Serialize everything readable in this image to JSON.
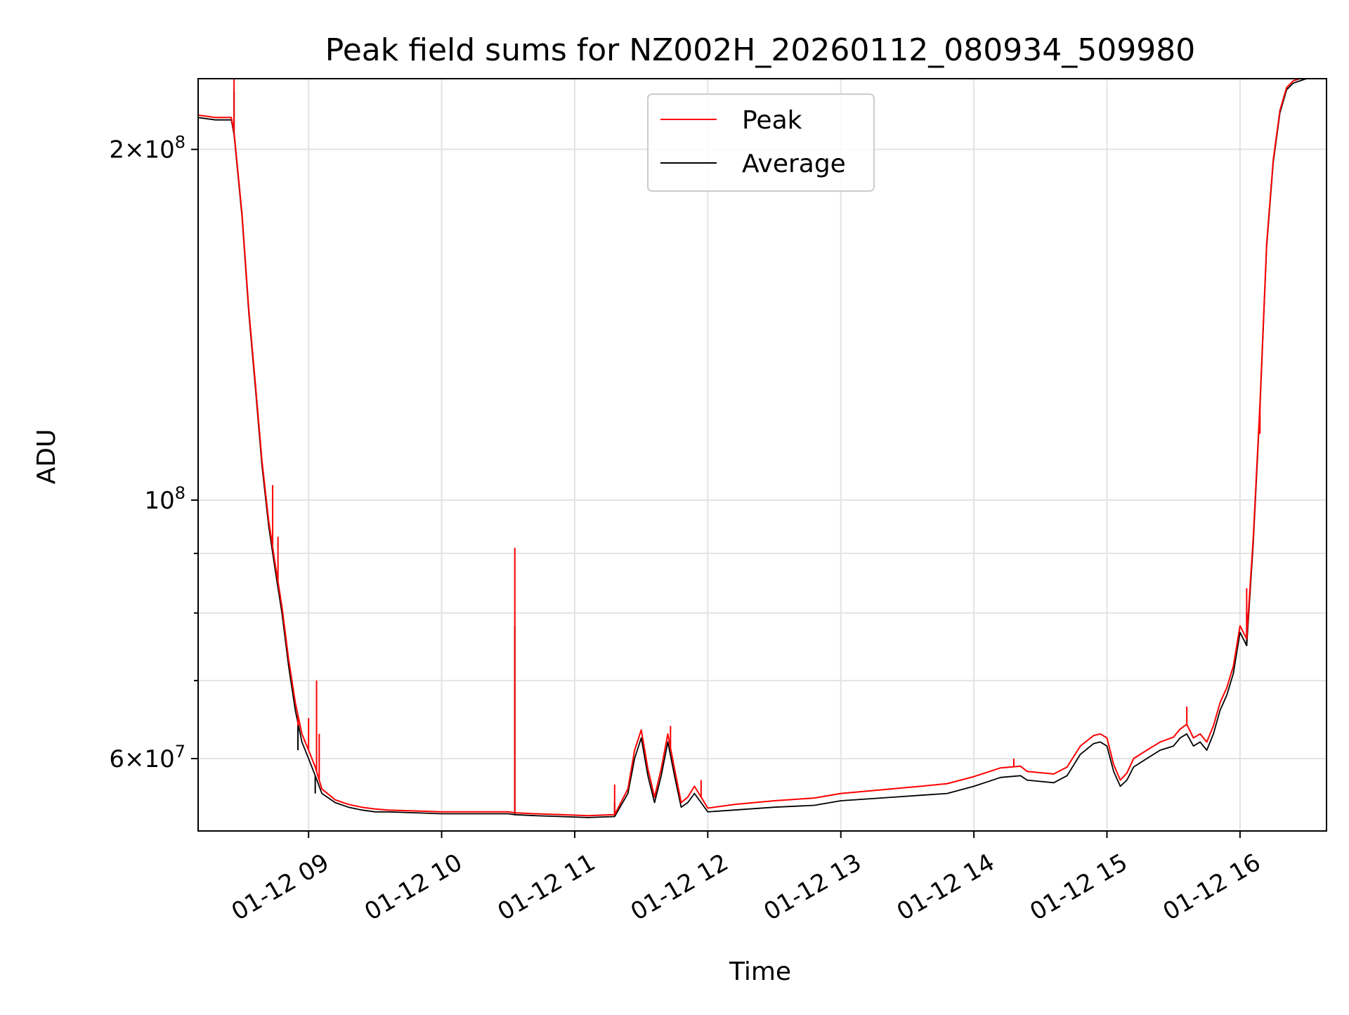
{
  "chart_data": {
    "type": "line",
    "title": "Peak field sums for NZ002H_20260112_080934_509980",
    "xlabel": "Time",
    "ylabel": "ADU",
    "yscale": "log",
    "xlim": [
      8.17,
      16.65
    ],
    "ylim": [
      52000000,
      230000000
    ],
    "grid": true,
    "legend": {
      "position": "top-center",
      "entries": [
        "Peak",
        "Average"
      ]
    },
    "x_ticks": [
      {
        "value": 9,
        "label": "01-12 09"
      },
      {
        "value": 10,
        "label": "01-12 10"
      },
      {
        "value": 11,
        "label": "01-12 11"
      },
      {
        "value": 12,
        "label": "01-12 12"
      },
      {
        "value": 13,
        "label": "01-12 13"
      },
      {
        "value": 14,
        "label": "01-12 14"
      },
      {
        "value": 15,
        "label": "01-12 15"
      },
      {
        "value": 16,
        "label": "01-12 16"
      }
    ],
    "y_major_ticks": [
      {
        "value": 60000000,
        "mantissa": "6",
        "exponent": "7"
      },
      {
        "value": 100000000,
        "mantissa": "",
        "exponent": "8"
      },
      {
        "value": 200000000,
        "mantissa": "2",
        "exponent": "8"
      }
    ],
    "y_minor_ticks": [
      70000000,
      80000000,
      90000000
    ],
    "series": [
      {
        "name": "Average",
        "color": "#000000",
        "x": [
          8.17,
          8.3,
          8.42,
          8.44,
          8.5,
          8.55,
          8.6,
          8.65,
          8.7,
          8.75,
          8.8,
          8.85,
          8.9,
          8.95,
          9.0,
          9.05,
          9.1,
          9.2,
          9.3,
          9.4,
          9.5,
          9.6,
          9.8,
          10.0,
          10.2,
          10.5,
          10.55,
          10.7,
          10.9,
          11.1,
          11.3,
          11.4,
          11.45,
          11.5,
          11.55,
          11.6,
          11.65,
          11.7,
          11.75,
          11.8,
          11.85,
          11.9,
          11.95,
          12.0,
          12.2,
          12.5,
          12.8,
          13.0,
          13.3,
          13.6,
          13.8,
          14.0,
          14.2,
          14.35,
          14.4,
          14.6,
          14.7,
          14.8,
          14.9,
          14.95,
          15.0,
          15.05,
          15.1,
          15.15,
          15.2,
          15.3,
          15.4,
          15.5,
          15.55,
          15.6,
          15.65,
          15.7,
          15.75,
          15.8,
          15.85,
          15.9,
          15.95,
          16.0,
          16.05,
          16.1,
          16.15,
          16.2,
          16.25,
          16.3,
          16.35,
          16.4,
          16.45,
          16.5,
          16.55,
          16.65
        ],
        "values": [
          213000000,
          212000000,
          212000000,
          206000000,
          175000000,
          145000000,
          125000000,
          107000000,
          95000000,
          87000000,
          80000000,
          72000000,
          66000000,
          62000000,
          60000000,
          58000000,
          56000000,
          55000000,
          54500000,
          54200000,
          54000000,
          54000000,
          53900000,
          53800000,
          53800000,
          53800000,
          53700000,
          53600000,
          53500000,
          53400000,
          53500000,
          56000000,
          60000000,
          62500000,
          58000000,
          55000000,
          58000000,
          62000000,
          58000000,
          54500000,
          55000000,
          56000000,
          55000000,
          54000000,
          54200000,
          54500000,
          54700000,
          55200000,
          55500000,
          55800000,
          56000000,
          56800000,
          57800000,
          58000000,
          57500000,
          57200000,
          58000000,
          60500000,
          61800000,
          62000000,
          61500000,
          58500000,
          56800000,
          57500000,
          59000000,
          60000000,
          61000000,
          61500000,
          62500000,
          63000000,
          61500000,
          62000000,
          61000000,
          63000000,
          66000000,
          68000000,
          71000000,
          77000000,
          75000000,
          92000000,
          120000000,
          165000000,
          195000000,
          215000000,
          225000000,
          228000000,
          229000000,
          230000000,
          230000000,
          230000000
        ],
        "spikes": [
          [
            8.44,
            224000000
          ],
          [
            8.92,
            61000000
          ],
          [
            9.05,
            56000000
          ],
          [
            10.55,
            78000000
          ],
          [
            11.3,
            55000000
          ],
          [
            16.05,
            80000000
          ]
        ]
      },
      {
        "name": "Peak",
        "color": "#ff0000",
        "x": [
          8.17,
          8.3,
          8.42,
          8.44,
          8.5,
          8.55,
          8.6,
          8.65,
          8.7,
          8.75,
          8.8,
          8.85,
          8.9,
          8.95,
          9.0,
          9.05,
          9.1,
          9.2,
          9.3,
          9.4,
          9.5,
          9.6,
          9.8,
          10.0,
          10.2,
          10.5,
          10.55,
          10.7,
          10.9,
          11.1,
          11.3,
          11.4,
          11.45,
          11.5,
          11.55,
          11.6,
          11.65,
          11.7,
          11.75,
          11.8,
          11.85,
          11.9,
          11.95,
          12.0,
          12.2,
          12.5,
          12.8,
          13.0,
          13.3,
          13.6,
          13.8,
          14.0,
          14.2,
          14.35,
          14.4,
          14.6,
          14.7,
          14.8,
          14.9,
          14.95,
          15.0,
          15.05,
          15.1,
          15.15,
          15.2,
          15.3,
          15.4,
          15.5,
          15.55,
          15.6,
          15.65,
          15.7,
          15.75,
          15.8,
          15.85,
          15.9,
          15.95,
          16.0,
          16.05,
          16.1,
          16.15,
          16.2,
          16.25,
          16.3,
          16.35,
          16.4,
          16.45,
          16.5,
          16.55,
          16.65
        ],
        "values": [
          214000000,
          213000000,
          213000000,
          207000000,
          176000000,
          146000000,
          126000000,
          108000000,
          96000000,
          88000000,
          81000000,
          73000000,
          67000000,
          63000000,
          61000000,
          59000000,
          56500000,
          55300000,
          54800000,
          54500000,
          54300000,
          54200000,
          54100000,
          54000000,
          54000000,
          54000000,
          53900000,
          53800000,
          53700000,
          53600000,
          53700000,
          56500000,
          61000000,
          63500000,
          58800000,
          55600000,
          58800000,
          63000000,
          58800000,
          55000000,
          55600000,
          56800000,
          55600000,
          54400000,
          54800000,
          55200000,
          55500000,
          56000000,
          56400000,
          56800000,
          57100000,
          57900000,
          58900000,
          59100000,
          58500000,
          58200000,
          59000000,
          61500000,
          62800000,
          63000000,
          62500000,
          59300000,
          57500000,
          58300000,
          60000000,
          61000000,
          62000000,
          62600000,
          63600000,
          64200000,
          62500000,
          63000000,
          62000000,
          64000000,
          67000000,
          69000000,
          72000000,
          78000000,
          76000000,
          93000000,
          121000000,
          166000000,
          196000000,
          216000000,
          226000000,
          229000000,
          230000000,
          230000000,
          230000000,
          230000000
        ],
        "spikes": [
          [
            8.44,
            230000000
          ],
          [
            8.73,
            103000000
          ],
          [
            8.77,
            93000000
          ],
          [
            8.92,
            64000000
          ],
          [
            8.97,
            62000000
          ],
          [
            9.0,
            65000000
          ],
          [
            9.06,
            70000000
          ],
          [
            9.08,
            63000000
          ],
          [
            10.55,
            91000000
          ],
          [
            11.3,
            57000000
          ],
          [
            11.72,
            64000000
          ],
          [
            11.95,
            57500000
          ],
          [
            14.3,
            60000000
          ],
          [
            15.6,
            66500000
          ],
          [
            16.05,
            84000000
          ],
          [
            16.15,
            114000000
          ]
        ]
      }
    ]
  }
}
